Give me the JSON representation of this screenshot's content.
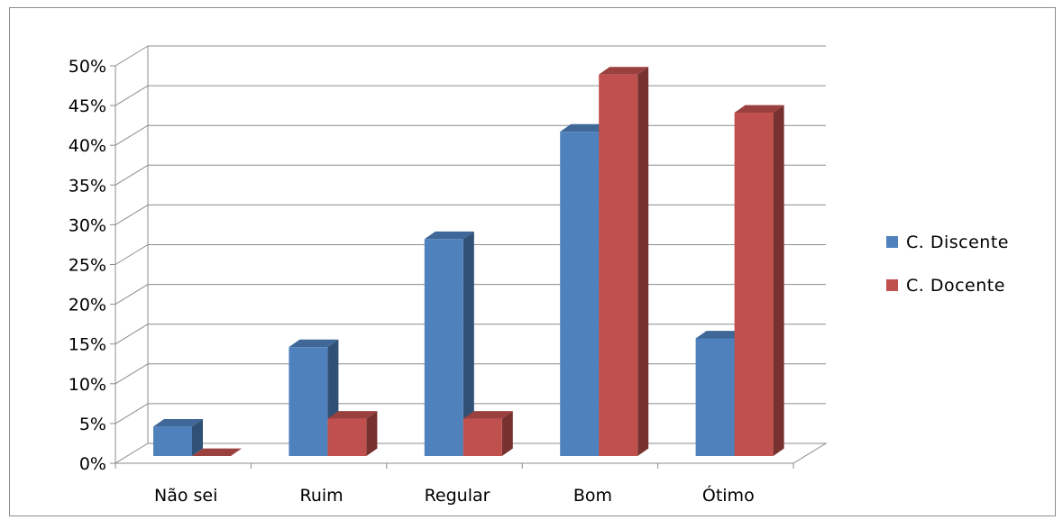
{
  "chart_data": {
    "type": "bar",
    "style": "3d-clustered-column",
    "categories": [
      "Não sei",
      "Ruim",
      "Regular",
      "Bom",
      "Ótimo"
    ],
    "series": [
      {
        "name": "C. Discente",
        "color": "#4f81bd",
        "values": [
          3.7,
          13.7,
          27.3,
          40.8,
          14.8
        ]
      },
      {
        "name": "C. Docente",
        "color": "#c0504d",
        "values": [
          0,
          4.7,
          4.7,
          48,
          43.2
        ]
      }
    ],
    "ylim": [
      0,
      50
    ],
    "yticks": [
      "0%",
      "5%",
      "10%",
      "15%",
      "20%",
      "25%",
      "30%",
      "35%",
      "40%",
      "45%",
      "50%"
    ],
    "grid": true,
    "legend_position": "right",
    "title": "",
    "xlabel": "",
    "ylabel": ""
  }
}
